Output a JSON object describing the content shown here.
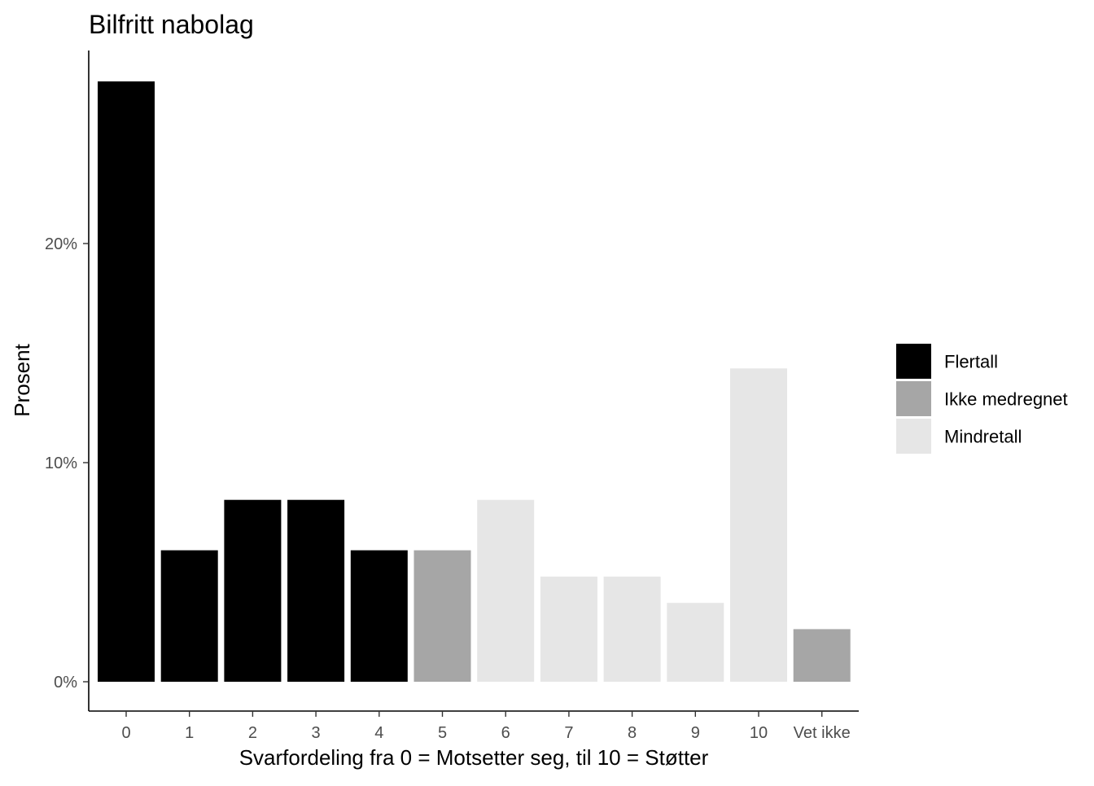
{
  "chart_data": {
    "type": "bar",
    "title": "Bilfritt nabolag",
    "xlabel": "Svarfordeling fra 0 = Motsetter seg, til 10 = Støtter",
    "ylabel": "Prosent",
    "categories": [
      "0",
      "1",
      "2",
      "3",
      "4",
      "5",
      "6",
      "7",
      "8",
      "9",
      "10",
      "Vet ikke"
    ],
    "values": [
      27.4,
      6.0,
      8.3,
      8.3,
      6.0,
      6.0,
      8.3,
      4.8,
      4.8,
      3.6,
      14.3,
      2.4
    ],
    "groups": [
      "Flertall",
      "Flertall",
      "Flertall",
      "Flertall",
      "Flertall",
      "Ikke medregnet",
      "Mindretall",
      "Mindretall",
      "Mindretall",
      "Mindretall",
      "Mindretall",
      "Ikke medregnet"
    ],
    "ylim": [
      0,
      28
    ],
    "yticks": [
      0,
      10,
      20
    ],
    "ytick_labels": [
      "0%",
      "10%",
      "20%"
    ],
    "grid": false,
    "legend_position": "right",
    "legend": [
      {
        "name": "Flertall",
        "color": "#000000"
      },
      {
        "name": "Ikke medregnet",
        "color": "#a6a6a6"
      },
      {
        "name": "Mindretall",
        "color": "#e6e6e6"
      }
    ]
  }
}
